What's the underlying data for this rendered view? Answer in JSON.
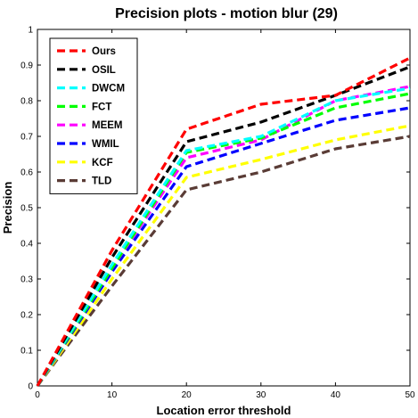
{
  "chart_data": {
    "type": "line",
    "title": "Precision plots - motion blur (29)",
    "xlabel": "Location error threshold",
    "ylabel": "Precision",
    "xlim": [
      0,
      50
    ],
    "ylim": [
      0,
      1
    ],
    "x_ticks": [
      "0",
      "10",
      "20",
      "30",
      "40",
      "50"
    ],
    "y_ticks": [
      "0",
      "0.1",
      "0.2",
      "0.3",
      "0.4",
      "0.5",
      "0.6",
      "0.7",
      "0.8",
      "0.9",
      "1"
    ],
    "grid": false,
    "legend_position": "top-left",
    "x": [
      0,
      10,
      20,
      30,
      40,
      50
    ],
    "series": [
      {
        "name": "Ours",
        "color": "#ff0000",
        "values": [
          0.0,
          0.38,
          0.72,
          0.79,
          0.815,
          0.92
        ]
      },
      {
        "name": "OSIL",
        "color": "#000000",
        "values": [
          0.0,
          0.36,
          0.685,
          0.74,
          0.815,
          0.895
        ]
      },
      {
        "name": "DWCM",
        "color": "#00ffff",
        "values": [
          0.0,
          0.34,
          0.66,
          0.7,
          0.8,
          0.835
        ]
      },
      {
        "name": "FCT",
        "color": "#00ff00",
        "values": [
          0.0,
          0.33,
          0.655,
          0.695,
          0.78,
          0.82
        ]
      },
      {
        "name": "MEEM",
        "color": "#ff00ff",
        "values": [
          0.0,
          0.33,
          0.64,
          0.69,
          0.8,
          0.84
        ]
      },
      {
        "name": "WMIL",
        "color": "#0000ff",
        "values": [
          0.0,
          0.32,
          0.615,
          0.68,
          0.745,
          0.78
        ]
      },
      {
        "name": "KCF",
        "color": "#ffff00",
        "values": [
          0.0,
          0.3,
          0.585,
          0.635,
          0.69,
          0.73
        ]
      },
      {
        "name": "TLD",
        "color": "#5a3c36",
        "values": [
          0.0,
          0.28,
          0.55,
          0.6,
          0.665,
          0.7
        ]
      }
    ]
  }
}
